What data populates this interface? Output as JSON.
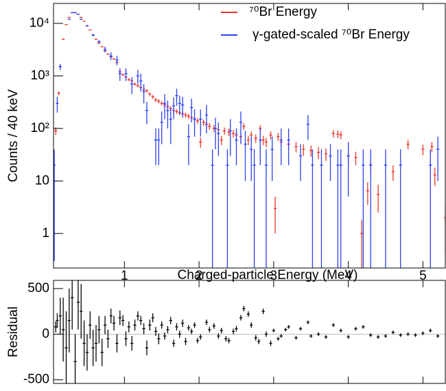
{
  "chart_data": [
    {
      "type": "errorbar",
      "y_label": "Counts / 40 keV",
      "log_y": true,
      "xlim": [
        0.05,
        5.3
      ],
      "xticks": [
        1,
        2,
        3,
        4,
        5
      ],
      "ylim": [
        0.22,
        24000
      ],
      "yticks": [
        1,
        10,
        {
          "value": 100,
          "label": "10²"
        },
        {
          "value": 1000,
          "label": "10³"
        },
        {
          "value": 10000,
          "label": "10⁴"
        }
      ],
      "bin_width": 0.04,
      "legend": "upper right",
      "series": [
        {
          "name": "⁷⁰Br Energy",
          "color": "#e8352a",
          "x": [
            0.08,
            0.12,
            0.14,
            0.18,
            0.22,
            0.26,
            0.3,
            0.34,
            0.38,
            0.42,
            0.46,
            0.5,
            0.54,
            0.58,
            0.62,
            0.66,
            0.7,
            0.74,
            0.78,
            0.82,
            0.86,
            0.9,
            0.94,
            0.98,
            1.02,
            1.06,
            1.1,
            1.14,
            1.18,
            1.22,
            1.26,
            1.3,
            1.34,
            1.38,
            1.42,
            1.46,
            1.5,
            1.54,
            1.58,
            1.62,
            1.66,
            1.7,
            1.74,
            1.78,
            1.82,
            1.86,
            1.9,
            1.94,
            1.98,
            2.02,
            2.06,
            2.1,
            2.14,
            2.2,
            2.26,
            2.3,
            2.34,
            2.4,
            2.46,
            2.5,
            2.56,
            2.6,
            2.66,
            2.7,
            2.76,
            2.82,
            2.86,
            2.9,
            2.96,
            3.02,
            3.06,
            3.1,
            3.2,
            3.3,
            3.4,
            3.5,
            3.6,
            3.7,
            3.8,
            3.86,
            3.9,
            4.0,
            4.1,
            4.18,
            4.26,
            4.3,
            4.4,
            4.6,
            4.8,
            5.0,
            5.12,
            5.16,
            5.3
          ],
          "values": [
            90,
            470,
            1500,
            5000,
            9500,
            13000,
            16000,
            16000,
            15000,
            13000,
            11000,
            9000,
            7500,
            6000,
            5000,
            4200,
            3600,
            3000,
            2600,
            2300,
            2100,
            1800,
            1200,
            1050,
            950,
            850,
            800,
            700,
            650,
            600,
            550,
            520,
            450,
            400,
            350,
            330,
            300,
            280,
            260,
            240,
            220,
            210,
            200,
            190,
            180,
            170,
            160,
            150,
            140,
            55,
            130,
            120,
            110,
            100,
            95,
            60,
            90,
            85,
            80,
            75,
            70,
            110,
            60,
            75,
            65,
            100,
            60,
            55,
            75,
            3,
            70,
            55,
            50,
            45,
            40,
            38,
            35,
            33,
            80,
            78,
            75,
            30,
            28,
            1,
            6.5,
            20,
            5.5,
            15,
            50,
            40,
            45,
            13,
            2
          ],
          "errors": [
            15,
            40,
            70,
            120,
            170,
            200,
            220,
            220,
            210,
            200,
            180,
            170,
            150,
            140,
            120,
            110,
            100,
            90,
            85,
            80,
            75,
            70,
            60,
            55,
            50,
            50,
            48,
            45,
            42,
            40,
            38,
            37,
            35,
            32,
            30,
            29,
            27,
            26,
            25,
            24,
            23,
            22,
            21,
            21,
            20,
            20,
            19,
            18,
            18,
            12,
            17,
            16,
            16,
            15,
            15,
            12,
            14,
            14,
            13,
            13,
            13,
            16,
            12,
            13,
            12,
            15,
            12,
            11,
            13,
            2,
            12,
            11,
            11,
            10,
            10,
            9,
            9,
            9,
            13,
            13,
            13,
            8,
            8,
            0.8,
            3,
            6,
            3,
            5,
            10,
            9,
            10,
            5,
            1.6
          ]
        },
        {
          "name": "γ-gated-scaled ⁷⁰Br Energy",
          "color": "#2a3ff0",
          "x": [
            0.06,
            0.1,
            0.14,
            0.26,
            0.3,
            0.34,
            0.38,
            0.42,
            0.5,
            0.58,
            0.66,
            0.74,
            0.82,
            0.9,
            0.94,
            1.02,
            1.1,
            1.18,
            1.22,
            1.26,
            1.3,
            1.42,
            1.46,
            1.5,
            1.54,
            1.58,
            1.62,
            1.66,
            1.7,
            1.74,
            1.78,
            1.86,
            1.9,
            1.94,
            2.02,
            2.1,
            2.18,
            2.22,
            2.26,
            2.38,
            2.42,
            2.5,
            2.56,
            2.62,
            2.7,
            2.74,
            2.82,
            2.9,
            2.98,
            3.1,
            3.2,
            3.36,
            3.46,
            3.52,
            3.64,
            3.76,
            3.86,
            3.9,
            4.0,
            4.2,
            4.3,
            4.5,
            4.7,
            5.1,
            5.2
          ],
          "values": [
            20,
            300,
            1500,
            12000,
            16000,
            16000,
            15000,
            12000,
            9000,
            6000,
            4500,
            3200,
            2400,
            2000,
            1100,
            1100,
            700,
            1000,
            800,
            500,
            220,
            60,
            60,
            130,
            300,
            220,
            150,
            270,
            420,
            300,
            280,
            70,
            250,
            150,
            150,
            180,
            20,
            100,
            80,
            20,
            90,
            60,
            130,
            50,
            40,
            20,
            60,
            20,
            40,
            60,
            60,
            30,
            120,
            20,
            20,
            30,
            20,
            20,
            30,
            20,
            20,
            20,
            20,
            20,
            40
          ],
          "errors": [
            19.7,
            100,
            200,
            300,
            300,
            300,
            300,
            300,
            300,
            300,
            300,
            400,
            400,
            400,
            300,
            300,
            250,
            300,
            300,
            200,
            100,
            40,
            40,
            80,
            150,
            120,
            100,
            120,
            150,
            120,
            120,
            50,
            120,
            80,
            80,
            100,
            19.9,
            60,
            50,
            19.9,
            60,
            40,
            80,
            40,
            30,
            19.9,
            40,
            19.99,
            30,
            40,
            40,
            20,
            60,
            19.99,
            19.9,
            20,
            19.99,
            19.9,
            25,
            19.99,
            19.99,
            19.9,
            19.9,
            19.99,
            30
          ]
        }
      ]
    },
    {
      "type": "errorbar",
      "x_label": "Charged-particle Energy (MeV)",
      "y_label": "Residual",
      "log_y": false,
      "xlim": [
        0.05,
        5.3
      ],
      "xticks": [
        1,
        2,
        3,
        4,
        5
      ],
      "ylim": [
        -540,
        590
      ],
      "yticks": [
        -500,
        0,
        500
      ],
      "reference_line": 0,
      "bin_width": 0.04,
      "series": [
        {
          "color": "#000000",
          "x": [
            0.08,
            0.1,
            0.14,
            0.18,
            0.22,
            0.26,
            0.3,
            0.34,
            0.38,
            0.42,
            0.46,
            0.5,
            0.54,
            0.58,
            0.62,
            0.66,
            0.7,
            0.74,
            0.78,
            0.82,
            0.86,
            0.9,
            0.94,
            0.98,
            1.02,
            1.06,
            1.1,
            1.14,
            1.18,
            1.22,
            1.26,
            1.3,
            1.34,
            1.38,
            1.42,
            1.46,
            1.5,
            1.54,
            1.58,
            1.62,
            1.66,
            1.7,
            1.74,
            1.78,
            1.82,
            1.86,
            1.9,
            1.94,
            1.98,
            2.02,
            2.1,
            2.14,
            2.2,
            2.26,
            2.3,
            2.36,
            2.4,
            2.46,
            2.5,
            2.56,
            2.6,
            2.66,
            2.7,
            2.76,
            2.8,
            2.86,
            2.9,
            2.96,
            3.0,
            3.06,
            3.1,
            3.16,
            3.2,
            3.3,
            3.36,
            3.46,
            3.5,
            3.6,
            3.7,
            3.8,
            3.9,
            4.0,
            4.1,
            4.2,
            4.3,
            4.4,
            4.5,
            4.6,
            4.7,
            4.8,
            4.9,
            5.0,
            5.1,
            5.2
          ],
          "values": [
            80,
            150,
            200,
            50,
            -150,
            150,
            400,
            -300,
            350,
            250,
            -100,
            -200,
            100,
            -150,
            -100,
            50,
            -200,
            100,
            -50,
            200,
            120,
            -100,
            180,
            150,
            -50,
            80,
            -100,
            100,
            200,
            150,
            60,
            -150,
            100,
            180,
            30,
            -50,
            100,
            -20,
            50,
            150,
            -100,
            80,
            0,
            120,
            -80,
            70,
            30,
            100,
            -70,
            -30,
            130,
            50,
            90,
            -20,
            40,
            -50,
            -70,
            30,
            60,
            180,
            280,
            220,
            100,
            -40,
            -80,
            250,
            0,
            -100,
            40,
            -50,
            -20,
            50,
            80,
            -40,
            60,
            130,
            -20,
            0,
            -30,
            100,
            40,
            -30,
            60,
            80,
            -10,
            -30,
            -20,
            20,
            -10,
            0,
            -10,
            10,
            40,
            -20
          ],
          "errors": [
            60,
            80,
            200,
            350,
            400,
            350,
            350,
            300,
            300,
            300,
            250,
            200,
            150,
            200,
            200,
            150,
            150,
            100,
            100,
            80,
            80,
            100,
            80,
            60,
            80,
            60,
            80,
            60,
            50,
            50,
            60,
            80,
            60,
            50,
            50,
            60,
            40,
            40,
            40,
            40,
            40,
            40,
            40,
            40,
            40,
            30,
            30,
            30,
            30,
            30,
            30,
            30,
            30,
            30,
            30,
            30,
            30,
            30,
            30,
            30,
            30,
            30,
            30,
            30,
            30,
            30,
            30,
            30,
            20,
            20,
            20,
            20,
            20,
            20,
            20,
            20,
            20,
            20,
            20,
            20,
            20,
            20,
            20,
            20,
            20,
            20,
            20,
            20,
            20,
            20,
            20,
            20,
            20,
            20
          ]
        }
      ]
    }
  ]
}
